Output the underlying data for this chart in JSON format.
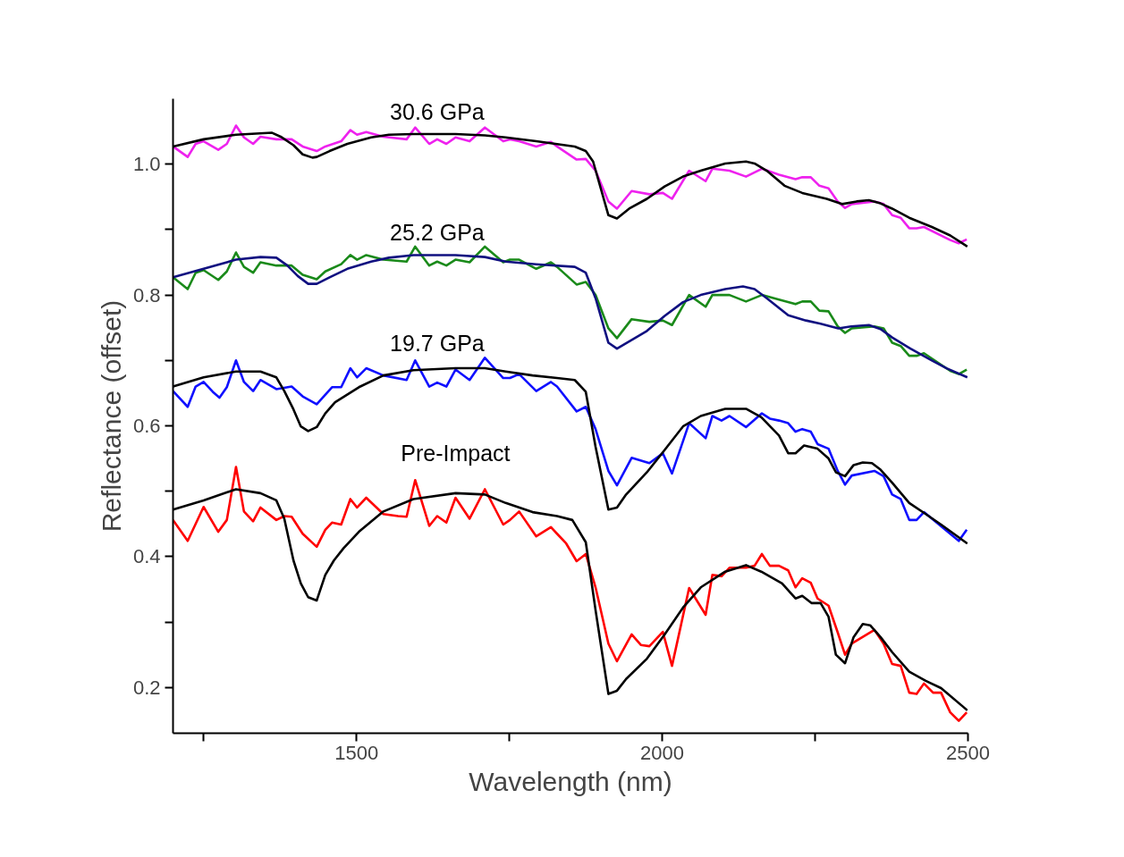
{
  "chart_data": {
    "type": "line",
    "xlabel": "Wavelength (nm)",
    "ylabel": "Reflectance (offset)",
    "xlim": [
      1200,
      2500
    ],
    "ylim": [
      0.13,
      1.1
    ],
    "xticks": [
      {
        "value": 1250,
        "label": null
      },
      {
        "value": 1500,
        "label": "1500"
      },
      {
        "value": 1750,
        "label": null
      },
      {
        "value": 2000,
        "label": "2000"
      },
      {
        "value": 2250,
        "label": null
      },
      {
        "value": 2500,
        "label": "2500"
      }
    ],
    "yticks": [
      {
        "value": 0.2,
        "label": "0.2"
      },
      {
        "value": 0.3,
        "label": null
      },
      {
        "value": 0.4,
        "label": "0.4"
      },
      {
        "value": 0.5,
        "label": null
      },
      {
        "value": 0.6,
        "label": "0.6"
      },
      {
        "value": 0.7,
        "label": null
      },
      {
        "value": 0.8,
        "label": "0.8"
      },
      {
        "value": 0.9,
        "label": null
      },
      {
        "value": 1.0,
        "label": "1.0"
      }
    ],
    "grid": false,
    "marker": "none",
    "line_style": "solid",
    "series": [
      {
        "name": "30.6 GPa",
        "color": "#ee22ee",
        "x": [
          1200,
          1224,
          1237,
          1250,
          1274,
          1288,
          1303,
          1316,
          1331,
          1343,
          1369,
          1394,
          1412,
          1435,
          1449,
          1475,
          1490,
          1501,
          1516,
          1544,
          1582,
          1596,
          1619,
          1632,
          1647,
          1662,
          1685,
          1710,
          1740,
          1751,
          1766,
          1794,
          1818,
          1828,
          1860,
          1875,
          1891,
          1912,
          1926,
          1950,
          1979,
          2001,
          2016,
          2044,
          2071,
          2082,
          2110,
          2137,
          2163,
          2191,
          2218,
          2229,
          2243,
          2257,
          2272,
          2287,
          2299,
          2310,
          2347,
          2362,
          2376,
          2390,
          2404,
          2416,
          2428,
          2471,
          2485,
          2498
        ],
        "values": [
          1.027,
          1.011,
          1.031,
          1.035,
          1.022,
          1.031,
          1.059,
          1.041,
          1.031,
          1.042,
          1.038,
          1.038,
          1.027,
          1.02,
          1.027,
          1.035,
          1.052,
          1.045,
          1.049,
          1.042,
          1.038,
          1.056,
          1.031,
          1.038,
          1.031,
          1.041,
          1.035,
          1.056,
          1.035,
          1.038,
          1.035,
          1.027,
          1.034,
          1.027,
          1.007,
          1.008,
          0.99,
          0.943,
          0.932,
          0.959,
          0.954,
          0.956,
          0.947,
          0.99,
          0.974,
          0.993,
          0.99,
          0.981,
          0.993,
          0.984,
          0.977,
          0.98,
          0.98,
          0.967,
          0.963,
          0.943,
          0.933,
          0.939,
          0.943,
          0.939,
          0.922,
          0.918,
          0.902,
          0.902,
          0.904,
          0.884,
          0.879,
          0.885
        ]
      },
      {
        "color": "#000000",
        "x": [
          1200,
          1250,
          1303,
          1362,
          1376,
          1397,
          1412,
          1428,
          1435,
          1456,
          1485,
          1524,
          1553,
          1593,
          1662,
          1710,
          1744,
          1794,
          1857,
          1875,
          1887,
          1912,
          1926,
          1946,
          1975,
          2004,
          2034,
          2063,
          2103,
          2137,
          2151,
          2171,
          2200,
          2229,
          2269,
          2294,
          2318,
          2338,
          2357,
          2376,
          2404,
          2441,
          2471,
          2499
        ],
        "values": [
          1.027,
          1.038,
          1.045,
          1.048,
          1.042,
          1.029,
          1.015,
          1.01,
          1.011,
          1.02,
          1.031,
          1.041,
          1.045,
          1.046,
          1.046,
          1.044,
          1.041,
          1.035,
          1.027,
          1.02,
          1.004,
          0.922,
          0.917,
          0.932,
          0.947,
          0.966,
          0.981,
          0.99,
          1.001,
          1.004,
          1.001,
          0.99,
          0.967,
          0.956,
          0.947,
          0.939,
          0.943,
          0.945,
          0.94,
          0.932,
          0.918,
          0.904,
          0.891,
          0.874
        ]
      },
      {
        "name": "25.2 GPa",
        "color": "#1a8a1a",
        "x": [
          1200,
          1224,
          1237,
          1250,
          1274,
          1288,
          1303,
          1316,
          1331,
          1343,
          1369,
          1394,
          1412,
          1435,
          1449,
          1475,
          1490,
          1501,
          1516,
          1544,
          1582,
          1596,
          1619,
          1632,
          1647,
          1662,
          1685,
          1710,
          1740,
          1751,
          1766,
          1794,
          1818,
          1828,
          1860,
          1875,
          1891,
          1912,
          1926,
          1950,
          1979,
          2001,
          2016,
          2044,
          2071,
          2082,
          2110,
          2137,
          2163,
          2191,
          2218,
          2229,
          2243,
          2257,
          2272,
          2287,
          2299,
          2310,
          2347,
          2362,
          2376,
          2390,
          2404,
          2416,
          2428,
          2471,
          2485,
          2498
        ],
        "values": [
          0.827,
          0.809,
          0.834,
          0.838,
          0.823,
          0.836,
          0.865,
          0.843,
          0.834,
          0.85,
          0.845,
          0.845,
          0.831,
          0.824,
          0.836,
          0.847,
          0.861,
          0.854,
          0.861,
          0.854,
          0.851,
          0.874,
          0.845,
          0.851,
          0.845,
          0.854,
          0.85,
          0.874,
          0.85,
          0.854,
          0.854,
          0.84,
          0.85,
          0.843,
          0.816,
          0.82,
          0.8,
          0.749,
          0.734,
          0.763,
          0.759,
          0.761,
          0.754,
          0.8,
          0.782,
          0.8,
          0.8,
          0.79,
          0.8,
          0.793,
          0.786,
          0.79,
          0.79,
          0.776,
          0.775,
          0.752,
          0.742,
          0.749,
          0.752,
          0.749,
          0.727,
          0.722,
          0.707,
          0.707,
          0.711,
          0.684,
          0.679,
          0.686
        ]
      },
      {
        "color": "#101080",
        "x": [
          1200,
          1250,
          1303,
          1343,
          1369,
          1387,
          1404,
          1421,
          1435,
          1456,
          1485,
          1524,
          1553,
          1593,
          1662,
          1710,
          1744,
          1794,
          1857,
          1875,
          1891,
          1912,
          1926,
          1975,
          2004,
          2034,
          2063,
          2103,
          2132,
          2151,
          2171,
          2206,
          2235,
          2259,
          2288,
          2309,
          2338,
          2357,
          2376,
          2406,
          2441,
          2465,
          2499
        ],
        "values": [
          0.827,
          0.84,
          0.854,
          0.858,
          0.857,
          0.845,
          0.829,
          0.817,
          0.817,
          0.827,
          0.84,
          0.851,
          0.857,
          0.861,
          0.861,
          0.858,
          0.851,
          0.847,
          0.843,
          0.834,
          0.795,
          0.727,
          0.718,
          0.745,
          0.768,
          0.789,
          0.8,
          0.809,
          0.813,
          0.809,
          0.795,
          0.769,
          0.761,
          0.756,
          0.749,
          0.752,
          0.754,
          0.748,
          0.735,
          0.718,
          0.7,
          0.688,
          0.674
        ]
      },
      {
        "name": "19.7 GPa",
        "color": "#1010ff",
        "x": [
          1200,
          1224,
          1237,
          1250,
          1265,
          1276,
          1288,
          1303,
          1316,
          1331,
          1343,
          1369,
          1394,
          1412,
          1435,
          1460,
          1475,
          1490,
          1501,
          1516,
          1544,
          1582,
          1596,
          1619,
          1632,
          1647,
          1662,
          1685,
          1710,
          1740,
          1751,
          1766,
          1794,
          1818,
          1828,
          1860,
          1875,
          1891,
          1912,
          1926,
          1950,
          1979,
          2001,
          2016,
          2044,
          2071,
          2082,
          2097,
          2110,
          2137,
          2163,
          2176,
          2191,
          2206,
          2218,
          2229,
          2243,
          2254,
          2272,
          2287,
          2299,
          2310,
          2347,
          2362,
          2376,
          2390,
          2404,
          2416,
          2428,
          2485,
          2498
        ],
        "values": [
          0.653,
          0.629,
          0.66,
          0.667,
          0.652,
          0.643,
          0.659,
          0.7,
          0.667,
          0.653,
          0.67,
          0.656,
          0.66,
          0.645,
          0.633,
          0.659,
          0.659,
          0.688,
          0.674,
          0.688,
          0.677,
          0.67,
          0.7,
          0.66,
          0.666,
          0.66,
          0.686,
          0.67,
          0.704,
          0.673,
          0.673,
          0.679,
          0.653,
          0.667,
          0.66,
          0.622,
          0.629,
          0.595,
          0.531,
          0.509,
          0.551,
          0.543,
          0.558,
          0.527,
          0.604,
          0.581,
          0.615,
          0.608,
          0.615,
          0.598,
          0.619,
          0.611,
          0.608,
          0.604,
          0.591,
          0.595,
          0.591,
          0.572,
          0.565,
          0.531,
          0.51,
          0.524,
          0.531,
          0.523,
          0.495,
          0.488,
          0.456,
          0.456,
          0.468,
          0.424,
          0.441
        ]
      },
      {
        "color": "#000000",
        "x": [
          1200,
          1250,
          1303,
          1343,
          1369,
          1382,
          1397,
          1409,
          1421,
          1435,
          1449,
          1465,
          1504,
          1544,
          1593,
          1662,
          1710,
          1744,
          1788,
          1828,
          1857,
          1875,
          1891,
          1912,
          1926,
          1941,
          1975,
          2004,
          2034,
          2063,
          2103,
          2137,
          2162,
          2191,
          2206,
          2218,
          2232,
          2254,
          2272,
          2284,
          2299,
          2313,
          2328,
          2343,
          2357,
          2376,
          2404,
          2431,
          2456,
          2499
        ],
        "values": [
          0.66,
          0.674,
          0.683,
          0.683,
          0.674,
          0.653,
          0.625,
          0.599,
          0.592,
          0.598,
          0.619,
          0.636,
          0.659,
          0.677,
          0.685,
          0.688,
          0.688,
          0.683,
          0.677,
          0.673,
          0.67,
          0.652,
          0.568,
          0.472,
          0.475,
          0.495,
          0.529,
          0.563,
          0.599,
          0.615,
          0.626,
          0.626,
          0.613,
          0.585,
          0.558,
          0.558,
          0.57,
          0.565,
          0.55,
          0.529,
          0.523,
          0.54,
          0.544,
          0.543,
          0.533,
          0.513,
          0.482,
          0.465,
          0.449,
          0.42
        ]
      },
      {
        "name": "Pre-Impact",
        "color": "#ff0000",
        "x": [
          1200,
          1224,
          1250,
          1274,
          1288,
          1303,
          1316,
          1331,
          1343,
          1369,
          1382,
          1394,
          1412,
          1435,
          1449,
          1460,
          1475,
          1490,
          1501,
          1516,
          1544,
          1568,
          1582,
          1596,
          1619,
          1632,
          1647,
          1662,
          1685,
          1710,
          1740,
          1751,
          1766,
          1794,
          1818,
          1828,
          1843,
          1860,
          1875,
          1891,
          1912,
          1926,
          1950,
          1965,
          1979,
          2001,
          2016,
          2044,
          2071,
          2082,
          2097,
          2110,
          2137,
          2151,
          2163,
          2176,
          2191,
          2206,
          2218,
          2229,
          2243,
          2254,
          2272,
          2287,
          2299,
          2310,
          2347,
          2362,
          2376,
          2390,
          2404,
          2416,
          2428,
          2443,
          2456,
          2471,
          2485,
          2498
        ],
        "values": [
          0.456,
          0.424,
          0.476,
          0.438,
          0.456,
          0.537,
          0.469,
          0.454,
          0.475,
          0.456,
          0.462,
          0.461,
          0.435,
          0.415,
          0.441,
          0.452,
          0.449,
          0.488,
          0.475,
          0.49,
          0.465,
          0.462,
          0.461,
          0.517,
          0.447,
          0.462,
          0.452,
          0.49,
          0.458,
          0.503,
          0.449,
          0.456,
          0.469,
          0.431,
          0.445,
          0.435,
          0.42,
          0.393,
          0.404,
          0.353,
          0.267,
          0.24,
          0.281,
          0.265,
          0.263,
          0.285,
          0.233,
          0.352,
          0.311,
          0.372,
          0.37,
          0.383,
          0.383,
          0.386,
          0.404,
          0.386,
          0.386,
          0.379,
          0.353,
          0.367,
          0.36,
          0.336,
          0.325,
          0.284,
          0.25,
          0.267,
          0.288,
          0.267,
          0.236,
          0.233,
          0.192,
          0.19,
          0.206,
          0.192,
          0.192,
          0.162,
          0.149,
          0.162
        ]
      },
      {
        "color": "#000000",
        "x": [
          1200,
          1250,
          1303,
          1343,
          1369,
          1382,
          1397,
          1409,
          1421,
          1435,
          1449,
          1463,
          1479,
          1504,
          1544,
          1593,
          1662,
          1710,
          1744,
          1788,
          1828,
          1853,
          1875,
          1891,
          1912,
          1926,
          1941,
          1975,
          2004,
          2034,
          2063,
          2103,
          2137,
          2162,
          2196,
          2218,
          2229,
          2244,
          2259,
          2272,
          2284,
          2299,
          2313,
          2328,
          2340,
          2357,
          2376,
          2404,
          2431,
          2456,
          2499
        ],
        "values": [
          0.472,
          0.486,
          0.503,
          0.497,
          0.486,
          0.458,
          0.394,
          0.359,
          0.338,
          0.333,
          0.372,
          0.394,
          0.413,
          0.438,
          0.469,
          0.488,
          0.497,
          0.495,
          0.482,
          0.468,
          0.462,
          0.456,
          0.422,
          0.318,
          0.19,
          0.195,
          0.213,
          0.244,
          0.281,
          0.322,
          0.353,
          0.377,
          0.387,
          0.377,
          0.359,
          0.336,
          0.34,
          0.329,
          0.329,
          0.308,
          0.25,
          0.237,
          0.277,
          0.297,
          0.295,
          0.277,
          0.254,
          0.224,
          0.21,
          0.199,
          0.165
        ]
      }
    ]
  }
}
